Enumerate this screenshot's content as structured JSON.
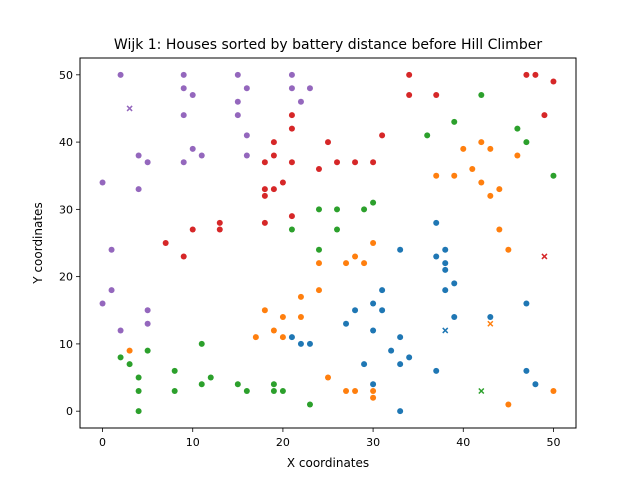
{
  "chart_data": {
    "type": "scatter",
    "title": "Wijk 1: Houses sorted by battery distance before Hill Climber",
    "xlabel": "X coordinates",
    "ylabel": "Y coordinates",
    "xlim": [
      -2.5,
      52.5
    ],
    "ylim": [
      -2.5,
      52.5
    ],
    "xticks": [
      0,
      10,
      20,
      30,
      40,
      50
    ],
    "yticks": [
      0,
      10,
      20,
      30,
      40,
      50
    ],
    "grid": false,
    "legend": "none",
    "series": [
      {
        "color": "#1f77b4",
        "points": [
          [
            21,
            11
          ],
          [
            22,
            10
          ],
          [
            23,
            10
          ],
          [
            27,
            13
          ],
          [
            28,
            15
          ],
          [
            29,
            7
          ],
          [
            30,
            16
          ],
          [
            30,
            12
          ],
          [
            30,
            4
          ],
          [
            31,
            18
          ],
          [
            31,
            15
          ],
          [
            32,
            9
          ],
          [
            33,
            11
          ],
          [
            33,
            7
          ],
          [
            33,
            0
          ],
          [
            33,
            24
          ],
          [
            34,
            8
          ],
          [
            37,
            28
          ],
          [
            37,
            23
          ],
          [
            37,
            6
          ],
          [
            38,
            24
          ],
          [
            38,
            22
          ],
          [
            38,
            21
          ],
          [
            38,
            18
          ],
          [
            39,
            19
          ],
          [
            39,
            14
          ],
          [
            43,
            14
          ],
          [
            47,
            16
          ],
          [
            47,
            6
          ],
          [
            48,
            4
          ]
        ],
        "batteries": [
          [
            38,
            12
          ]
        ]
      },
      {
        "color": "#ff7f0e",
        "points": [
          [
            3,
            9
          ],
          [
            17,
            11
          ],
          [
            18,
            15
          ],
          [
            19,
            12
          ],
          [
            20,
            14
          ],
          [
            20,
            11
          ],
          [
            22,
            17
          ],
          [
            22,
            14
          ],
          [
            24,
            22
          ],
          [
            24,
            18
          ],
          [
            25,
            5
          ],
          [
            27,
            22
          ],
          [
            27,
            3
          ],
          [
            28,
            23
          ],
          [
            28,
            3
          ],
          [
            29,
            22
          ],
          [
            30,
            25
          ],
          [
            30,
            3
          ],
          [
            30,
            2
          ],
          [
            37,
            35
          ],
          [
            39,
            35
          ],
          [
            40,
            39
          ],
          [
            41,
            36
          ],
          [
            42,
            40
          ],
          [
            42,
            34
          ],
          [
            43,
            39
          ],
          [
            43,
            32
          ],
          [
            44,
            33
          ],
          [
            44,
            27
          ],
          [
            45,
            24
          ],
          [
            45,
            1
          ],
          [
            46,
            38
          ],
          [
            50,
            3
          ]
        ],
        "batteries": [
          [
            43,
            13
          ]
        ]
      },
      {
        "color": "#2ca02c",
        "points": [
          [
            2,
            8
          ],
          [
            3,
            7
          ],
          [
            4,
            5
          ],
          [
            4,
            3
          ],
          [
            4,
            0
          ],
          [
            5,
            9
          ],
          [
            8,
            6
          ],
          [
            8,
            3
          ],
          [
            11,
            10
          ],
          [
            11,
            4
          ],
          [
            12,
            5
          ],
          [
            15,
            4
          ],
          [
            16,
            3
          ],
          [
            19,
            4
          ],
          [
            19,
            3
          ],
          [
            20,
            3
          ],
          [
            21,
            27
          ],
          [
            23,
            1
          ],
          [
            24,
            30
          ],
          [
            24,
            24
          ],
          [
            26,
            30
          ],
          [
            26,
            27
          ],
          [
            29,
            30
          ],
          [
            30,
            31
          ],
          [
            36,
            41
          ],
          [
            39,
            43
          ],
          [
            42,
            47
          ],
          [
            46,
            42
          ],
          [
            47,
            40
          ],
          [
            50,
            35
          ]
        ],
        "batteries": [
          [
            42,
            3
          ]
        ]
      },
      {
        "color": "#d62728",
        "points": [
          [
            7,
            25
          ],
          [
            9,
            23
          ],
          [
            10,
            27
          ],
          [
            13,
            28
          ],
          [
            13,
            27
          ],
          [
            18,
            37
          ],
          [
            18,
            33
          ],
          [
            18,
            32
          ],
          [
            18,
            28
          ],
          [
            19,
            40
          ],
          [
            19,
            38
          ],
          [
            19,
            33
          ],
          [
            20,
            34
          ],
          [
            21,
            44
          ],
          [
            21,
            42
          ],
          [
            21,
            37
          ],
          [
            21,
            29
          ],
          [
            24,
            36
          ],
          [
            25,
            40
          ],
          [
            26,
            37
          ],
          [
            28,
            37
          ],
          [
            30,
            37
          ],
          [
            31,
            41
          ],
          [
            34,
            50
          ],
          [
            34,
            47
          ],
          [
            37,
            47
          ],
          [
            47,
            50
          ],
          [
            48,
            50
          ],
          [
            49,
            44
          ],
          [
            50,
            49
          ]
        ],
        "batteries": [
          [
            49,
            23
          ]
        ]
      },
      {
        "color": "#9467bd",
        "points": [
          [
            0,
            34
          ],
          [
            0,
            16
          ],
          [
            1,
            24
          ],
          [
            1,
            18
          ],
          [
            2,
            50
          ],
          [
            2,
            12
          ],
          [
            4,
            38
          ],
          [
            4,
            33
          ],
          [
            5,
            37
          ],
          [
            5,
            15
          ],
          [
            5,
            13
          ],
          [
            9,
            50
          ],
          [
            9,
            48
          ],
          [
            9,
            44
          ],
          [
            9,
            37
          ],
          [
            10,
            47
          ],
          [
            10,
            39
          ],
          [
            11,
            38
          ],
          [
            15,
            50
          ],
          [
            15,
            46
          ],
          [
            15,
            44
          ],
          [
            16,
            48
          ],
          [
            16,
            41
          ],
          [
            16,
            38
          ],
          [
            21,
            50
          ],
          [
            21,
            48
          ],
          [
            22,
            46
          ],
          [
            23,
            48
          ]
        ],
        "batteries": [
          [
            3,
            45
          ]
        ]
      }
    ]
  }
}
